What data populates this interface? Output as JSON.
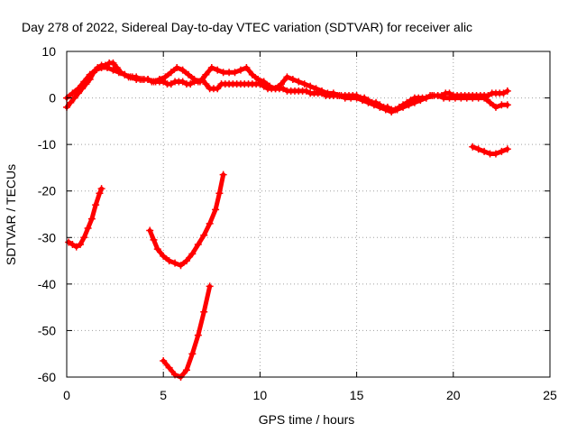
{
  "chart_data": {
    "type": "scatter",
    "title": "Day 278 of 2022, Sidereal Day-to-day VTEC variation (SDTVAR) for receiver alic",
    "xlabel": "GPS time / hours",
    "ylabel": "SDTVAR / TECUs",
    "xlim": [
      0,
      25
    ],
    "ylim": [
      -60,
      10
    ],
    "xticks": [
      "0",
      "5",
      "10",
      "15",
      "20",
      "25"
    ],
    "yticks": [
      "10",
      "0",
      "-10",
      "-20",
      "-30",
      "-40",
      "-50",
      "-60"
    ],
    "grid": true,
    "marker": "+",
    "series_color": "#ff0000",
    "series": [
      {
        "values": [
          [
            0.0,
            -2
          ],
          [
            0.2,
            -1
          ],
          [
            0.4,
            0
          ],
          [
            0.6,
            1
          ],
          [
            0.8,
            2
          ],
          [
            1.0,
            3
          ],
          [
            1.2,
            4
          ],
          [
            1.4,
            5.5
          ],
          [
            1.6,
            6.5
          ],
          [
            1.8,
            7
          ],
          [
            2.0,
            7
          ],
          [
            2.2,
            7.5
          ],
          [
            2.4,
            7.5
          ],
          [
            2.6,
            6.5
          ],
          [
            2.8,
            5.5
          ],
          [
            3.0,
            5
          ],
          [
            3.2,
            4.5
          ],
          [
            3.4,
            4.5
          ],
          [
            3.6,
            4.5
          ],
          [
            3.8,
            4
          ],
          [
            4.0,
            4
          ],
          [
            4.2,
            4
          ],
          [
            4.4,
            3.5
          ],
          [
            4.6,
            3.5
          ],
          [
            4.8,
            3.5
          ],
          [
            5.0,
            3.5
          ],
          [
            5.2,
            3
          ],
          [
            5.4,
            3
          ],
          [
            5.6,
            3.5
          ],
          [
            5.8,
            3.5
          ],
          [
            6.0,
            3.5
          ],
          [
            6.2,
            3
          ],
          [
            6.4,
            3
          ],
          [
            6.6,
            3.5
          ],
          [
            6.8,
            3.5
          ],
          [
            7.0,
            4
          ],
          [
            7.2,
            3
          ],
          [
            7.4,
            2
          ],
          [
            7.6,
            2
          ],
          [
            7.8,
            2
          ],
          [
            8.0,
            3
          ],
          [
            8.2,
            3
          ],
          [
            8.4,
            3
          ],
          [
            8.6,
            3
          ],
          [
            8.8,
            3
          ],
          [
            9.0,
            3
          ],
          [
            9.2,
            3
          ],
          [
            9.4,
            3
          ],
          [
            9.6,
            3
          ],
          [
            9.8,
            3
          ],
          [
            10.0,
            3
          ],
          [
            10.2,
            2.5
          ],
          [
            10.4,
            2
          ],
          [
            10.6,
            2
          ],
          [
            10.8,
            2
          ],
          [
            11.0,
            2
          ],
          [
            11.2,
            2
          ],
          [
            11.4,
            1.5
          ],
          [
            11.6,
            1.5
          ],
          [
            11.8,
            1.5
          ],
          [
            12.0,
            1.5
          ],
          [
            12.2,
            1.5
          ],
          [
            12.4,
            1.5
          ],
          [
            12.6,
            1
          ],
          [
            12.8,
            1
          ],
          [
            13.0,
            1
          ],
          [
            13.2,
            1
          ],
          [
            13.4,
            0.5
          ],
          [
            13.6,
            0.5
          ],
          [
            13.8,
            0.5
          ],
          [
            14.0,
            0.5
          ],
          [
            14.2,
            0.5
          ],
          [
            14.4,
            0.5
          ],
          [
            14.6,
            0.5
          ],
          [
            14.8,
            0.5
          ],
          [
            15.0,
            0.5
          ],
          [
            15.2,
            0
          ],
          [
            15.4,
            0
          ],
          [
            15.6,
            -0.5
          ],
          [
            15.8,
            -1
          ],
          [
            16.0,
            -1
          ],
          [
            16.2,
            -1.5
          ],
          [
            16.4,
            -2
          ],
          [
            16.6,
            -2
          ],
          [
            16.8,
            -2.5
          ],
          [
            17.0,
            -2.5
          ],
          [
            17.2,
            -2
          ],
          [
            17.4,
            -1.5
          ],
          [
            17.6,
            -1
          ],
          [
            17.8,
            -0.5
          ],
          [
            18.0,
            0
          ],
          [
            18.2,
            0
          ],
          [
            18.4,
            0
          ],
          [
            18.6,
            0
          ],
          [
            18.8,
            0.5
          ],
          [
            19.0,
            0.5
          ],
          [
            19.2,
            0.5
          ],
          [
            19.4,
            0.5
          ],
          [
            19.6,
            1
          ],
          [
            19.8,
            1
          ],
          [
            20.0,
            0.5
          ],
          [
            20.2,
            0.5
          ],
          [
            20.4,
            0.5
          ],
          [
            20.6,
            0.5
          ],
          [
            20.8,
            0.5
          ],
          [
            21.0,
            0.5
          ],
          [
            21.2,
            0.5
          ],
          [
            21.4,
            0.5
          ],
          [
            21.6,
            0.5
          ],
          [
            21.8,
            0.5
          ],
          [
            22.0,
            1
          ],
          [
            22.2,
            1
          ],
          [
            22.4,
            1
          ],
          [
            22.6,
            1
          ],
          [
            22.8,
            1.5
          ]
        ]
      },
      {
        "values": [
          [
            0.0,
            0
          ],
          [
            0.3,
            1
          ],
          [
            0.6,
            2
          ],
          [
            0.9,
            3.5
          ],
          [
            1.2,
            5
          ],
          [
            1.5,
            6
          ],
          [
            1.8,
            6.5
          ],
          [
            2.1,
            6.5
          ],
          [
            2.4,
            6
          ],
          [
            2.7,
            5.5
          ],
          [
            3.0,
            5
          ],
          [
            3.3,
            4.5
          ],
          [
            3.6,
            4
          ],
          [
            3.9,
            4
          ],
          [
            4.2,
            4
          ],
          [
            4.5,
            3.5
          ],
          [
            4.8,
            4
          ],
          [
            5.1,
            4.5
          ],
          [
            5.4,
            5.5
          ],
          [
            5.7,
            6.5
          ],
          [
            6.0,
            6
          ],
          [
            6.3,
            5
          ],
          [
            6.6,
            4
          ],
          [
            6.9,
            3.5
          ],
          [
            7.2,
            5
          ],
          [
            7.5,
            6.5
          ],
          [
            7.8,
            6
          ],
          [
            8.1,
            5.5
          ],
          [
            8.4,
            5.5
          ],
          [
            8.7,
            5.5
          ],
          [
            9.0,
            6
          ],
          [
            9.3,
            6.5
          ],
          [
            9.6,
            5
          ],
          [
            9.9,
            4
          ],
          [
            10.2,
            3.5
          ],
          [
            10.5,
            2.5
          ],
          [
            10.8,
            2
          ],
          [
            11.1,
            3
          ],
          [
            11.4,
            4.5
          ],
          [
            11.7,
            4
          ],
          [
            12.0,
            3.5
          ],
          [
            12.3,
            3
          ],
          [
            12.6,
            2.5
          ],
          [
            12.9,
            2
          ],
          [
            13.2,
            1.5
          ],
          [
            13.5,
            1
          ],
          [
            13.8,
            1
          ],
          [
            14.1,
            0.5
          ],
          [
            14.4,
            0
          ],
          [
            14.7,
            0
          ],
          [
            15.0,
            0
          ],
          [
            15.3,
            -0.5
          ],
          [
            15.6,
            -1
          ],
          [
            15.9,
            -1.5
          ],
          [
            16.2,
            -2
          ],
          [
            16.5,
            -2.5
          ],
          [
            16.8,
            -3
          ],
          [
            17.1,
            -2.5
          ],
          [
            17.4,
            -2
          ],
          [
            17.7,
            -1.5
          ],
          [
            18.0,
            -1
          ],
          [
            18.3,
            -0.5
          ],
          [
            18.6,
            0
          ],
          [
            18.9,
            0.5
          ],
          [
            19.2,
            0.5
          ],
          [
            19.5,
            0
          ],
          [
            19.8,
            0
          ],
          [
            20.1,
            0
          ],
          [
            20.4,
            0
          ],
          [
            20.7,
            0
          ],
          [
            21.0,
            0
          ],
          [
            21.3,
            0
          ],
          [
            21.6,
            0
          ],
          [
            21.9,
            -1
          ],
          [
            22.2,
            -2
          ],
          [
            22.5,
            -1.5
          ],
          [
            22.8,
            -1.5
          ]
        ]
      },
      {
        "values": [
          [
            0.1,
            -31
          ],
          [
            0.3,
            -31.5
          ],
          [
            0.5,
            -32
          ],
          [
            0.7,
            -31.5
          ],
          [
            0.9,
            -30
          ],
          [
            1.1,
            -28
          ],
          [
            1.3,
            -26
          ],
          [
            1.5,
            -23
          ],
          [
            1.7,
            -20.5
          ],
          [
            1.8,
            -19.5
          ]
        ]
      },
      {
        "values": [
          [
            4.3,
            -28.5
          ],
          [
            4.5,
            -30.5
          ],
          [
            4.7,
            -32.5
          ],
          [
            5.0,
            -34
          ],
          [
            5.3,
            -35
          ],
          [
            5.6,
            -35.5
          ],
          [
            5.9,
            -36
          ],
          [
            6.2,
            -35
          ],
          [
            6.5,
            -33.5
          ],
          [
            6.8,
            -31.5
          ],
          [
            7.1,
            -29.5
          ],
          [
            7.4,
            -27
          ],
          [
            7.7,
            -24
          ],
          [
            7.9,
            -20.5
          ],
          [
            8.1,
            -16.5
          ]
        ]
      },
      {
        "values": [
          [
            5.0,
            -56.5
          ],
          [
            5.3,
            -58
          ],
          [
            5.6,
            -59.5
          ],
          [
            5.9,
            -60
          ],
          [
            6.2,
            -58.5
          ],
          [
            6.5,
            -55
          ],
          [
            6.8,
            -51
          ],
          [
            7.1,
            -46
          ],
          [
            7.4,
            -40.5
          ]
        ]
      },
      {
        "values": [
          [
            21.0,
            -10.5
          ],
          [
            21.3,
            -11
          ],
          [
            21.6,
            -11.5
          ],
          [
            21.9,
            -12
          ],
          [
            22.2,
            -12
          ],
          [
            22.5,
            -11.5
          ],
          [
            22.8,
            -11
          ]
        ]
      }
    ]
  }
}
